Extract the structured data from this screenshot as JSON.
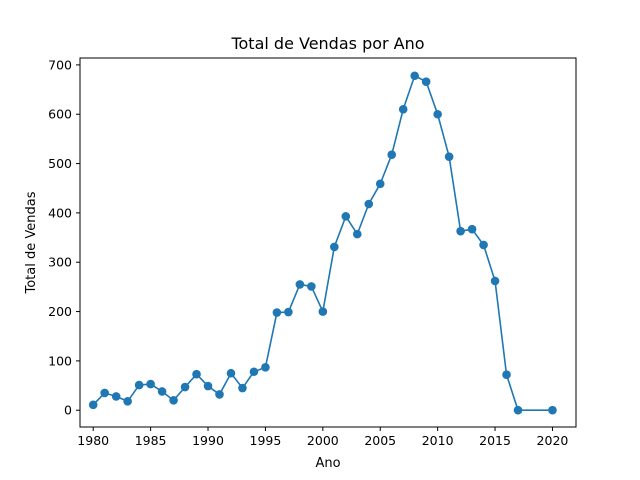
{
  "chart_data": {
    "type": "line",
    "title": "Total de Vendas por Ano",
    "xlabel": "Ano",
    "ylabel": "Total de Vendas",
    "xlim": [
      1978.85,
      2022.05
    ],
    "ylim": [
      -34,
      714
    ],
    "xticks": [
      1980,
      1985,
      1990,
      1995,
      2000,
      2005,
      2010,
      2015,
      2020
    ],
    "yticks": [
      0,
      100,
      200,
      300,
      400,
      500,
      600,
      700
    ],
    "grid": false,
    "marker": "circle",
    "colors": {
      "series": "#1f77b4",
      "axes": "#000000",
      "background": "#ffffff"
    },
    "series": [
      {
        "x": [
          1980,
          1981,
          1982,
          1983,
          1984,
          1985,
          1986,
          1987,
          1988,
          1989,
          1990,
          1991,
          1992,
          1993,
          1994,
          1995,
          1996,
          1997,
          1998,
          1999,
          2000,
          2001,
          2002,
          2003,
          2004,
          2005,
          2006,
          2007,
          2008,
          2009,
          2010,
          2011,
          2012,
          2013,
          2014,
          2015,
          2016,
          2017,
          2020
        ],
        "y": [
          11,
          35,
          28,
          18,
          51,
          53,
          38,
          20,
          47,
          73,
          49,
          32,
          75,
          45,
          78,
          87,
          198,
          199,
          255,
          251,
          200,
          331,
          393,
          357,
          418,
          459,
          518,
          610,
          678,
          666,
          600,
          514,
          363,
          367,
          335,
          262,
          72,
          0,
          0
        ]
      }
    ]
  }
}
